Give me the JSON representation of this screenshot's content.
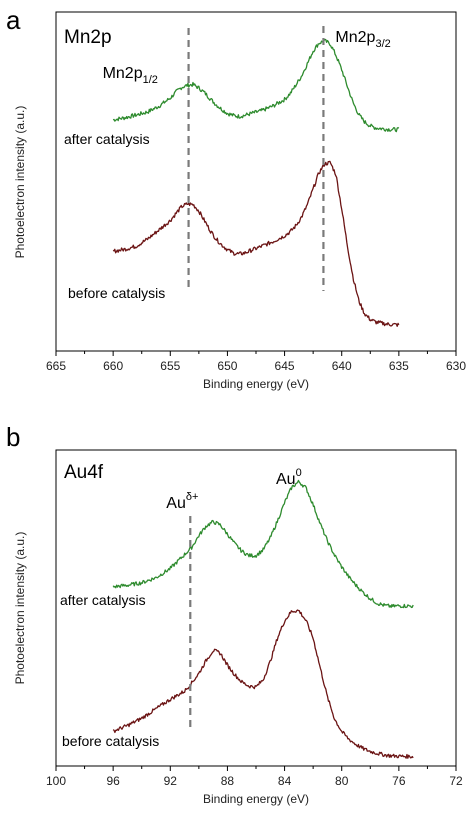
{
  "figure": {
    "colors": {
      "after": "#2e8b2e",
      "before": "#6b1414",
      "marker": "#7a7a7a"
    }
  },
  "chart_data": [
    {
      "type": "line",
      "panel_letter": "a",
      "inner_title": "Mn2p",
      "xlabel": "Binding energy (eV)",
      "ylabel": "Photoelectron intensity (a.u.)",
      "xlim": [
        665,
        630
      ],
      "xticks": [
        "665",
        "660",
        "655",
        "650",
        "645",
        "640",
        "635",
        "630"
      ],
      "ylim": [
        0,
        1
      ],
      "markers": [
        {
          "x": 653.4,
          "label": "Mn2p",
          "sub": "1/2"
        },
        {
          "x": 641.6,
          "label": "Mn2p",
          "sub": "3/2"
        }
      ],
      "series": [
        {
          "name": "after catalysis",
          "color": "#2e8b2e",
          "x": [
            660,
            659,
            658,
            657,
            656,
            655,
            654.5,
            654,
            653.5,
            653,
            652.5,
            652,
            651.5,
            651,
            650.5,
            650,
            649.5,
            649,
            648.5,
            648,
            647,
            646,
            645,
            644.5,
            644,
            643.5,
            643,
            642.5,
            642,
            641.5,
            641,
            640.5,
            640,
            639.5,
            639,
            638.5,
            638,
            637.5,
            637,
            636,
            635
          ],
          "y": [
            0.682,
            0.688,
            0.696,
            0.705,
            0.722,
            0.746,
            0.764,
            0.778,
            0.784,
            0.786,
            0.776,
            0.762,
            0.744,
            0.727,
            0.713,
            0.701,
            0.695,
            0.692,
            0.695,
            0.7,
            0.709,
            0.723,
            0.742,
            0.76,
            0.785,
            0.812,
            0.848,
            0.885,
            0.908,
            0.915,
            0.906,
            0.872,
            0.83,
            0.78,
            0.732,
            0.697,
            0.676,
            0.664,
            0.658,
            0.654,
            0.653
          ]
        },
        {
          "name": "before catalysis",
          "color": "#6b1414",
          "x": [
            660,
            659,
            658,
            657,
            656,
            655,
            654.5,
            654,
            653.5,
            653,
            652.5,
            652,
            651.5,
            651,
            650.5,
            650,
            649.5,
            649,
            648.5,
            648,
            647,
            646,
            645,
            644.5,
            644,
            643.5,
            643,
            642.5,
            642,
            641.5,
            641,
            640.5,
            640,
            639.5,
            639,
            638.5,
            638,
            637.5,
            637,
            636,
            635
          ],
          "y": [
            0.294,
            0.3,
            0.309,
            0.33,
            0.357,
            0.385,
            0.406,
            0.426,
            0.434,
            0.432,
            0.413,
            0.384,
            0.355,
            0.331,
            0.313,
            0.299,
            0.289,
            0.286,
            0.289,
            0.296,
            0.309,
            0.323,
            0.34,
            0.352,
            0.37,
            0.396,
            0.432,
            0.478,
            0.525,
            0.552,
            0.556,
            0.52,
            0.42,
            0.31,
            0.216,
            0.148,
            0.11,
            0.093,
            0.085,
            0.079,
            0.077
          ]
        }
      ]
    },
    {
      "type": "line",
      "panel_letter": "b",
      "inner_title": "Au4f",
      "xlabel": "Binding energy (eV)",
      "ylabel": "Photoelectron intensity (a.u.)",
      "xlim": [
        100,
        72
      ],
      "xticks": [
        "100",
        "96",
        "92",
        "88",
        "84",
        "80",
        "76",
        "72"
      ],
      "ylim": [
        0,
        1
      ],
      "markers": [
        {
          "x": 90.6,
          "label": "Au",
          "sup": "δ+"
        },
        {
          "x": 83.2,
          "label": "Au",
          "sup": "0",
          "line": false
        }
      ],
      "series": [
        {
          "name": "after catalysis",
          "color": "#2e8b2e",
          "x": [
            96,
            95,
            94,
            93,
            92,
            91,
            90.5,
            90,
            89.5,
            89,
            88.5,
            88,
            87.5,
            87,
            86.5,
            86,
            85.5,
            85,
            84.5,
            84,
            83.5,
            83,
            82.5,
            82,
            81.5,
            81,
            80.5,
            80,
            79.5,
            79,
            78.5,
            78,
            77.5,
            77,
            76.5,
            76,
            75
          ],
          "y": [
            0.567,
            0.572,
            0.58,
            0.596,
            0.625,
            0.669,
            0.692,
            0.729,
            0.759,
            0.773,
            0.763,
            0.734,
            0.704,
            0.68,
            0.666,
            0.666,
            0.684,
            0.722,
            0.775,
            0.833,
            0.882,
            0.9,
            0.88,
            0.827,
            0.766,
            0.712,
            0.667,
            0.63,
            0.598,
            0.572,
            0.549,
            0.53,
            0.515,
            0.508,
            0.505,
            0.507,
            0.506
          ]
        },
        {
          "name": "before catalysis",
          "color": "#6b1414",
          "x": [
            96,
            95,
            94,
            93,
            92,
            91,
            90.5,
            90,
            89.5,
            89,
            88.5,
            88,
            87.5,
            87,
            86.5,
            86,
            85.5,
            85,
            84.5,
            84,
            83.5,
            83,
            82.5,
            82,
            81.5,
            81,
            80.5,
            80,
            79.5,
            79,
            78.5,
            78,
            77.5,
            77,
            76.5,
            76,
            75
          ],
          "y": [
            0.11,
            0.128,
            0.151,
            0.181,
            0.211,
            0.237,
            0.263,
            0.293,
            0.333,
            0.366,
            0.357,
            0.319,
            0.29,
            0.266,
            0.253,
            0.25,
            0.273,
            0.331,
            0.405,
            0.459,
            0.49,
            0.492,
            0.46,
            0.405,
            0.31,
            0.218,
            0.149,
            0.109,
            0.085,
            0.068,
            0.055,
            0.046,
            0.04,
            0.035,
            0.032,
            0.031,
            0.03
          ]
        }
      ]
    }
  ]
}
